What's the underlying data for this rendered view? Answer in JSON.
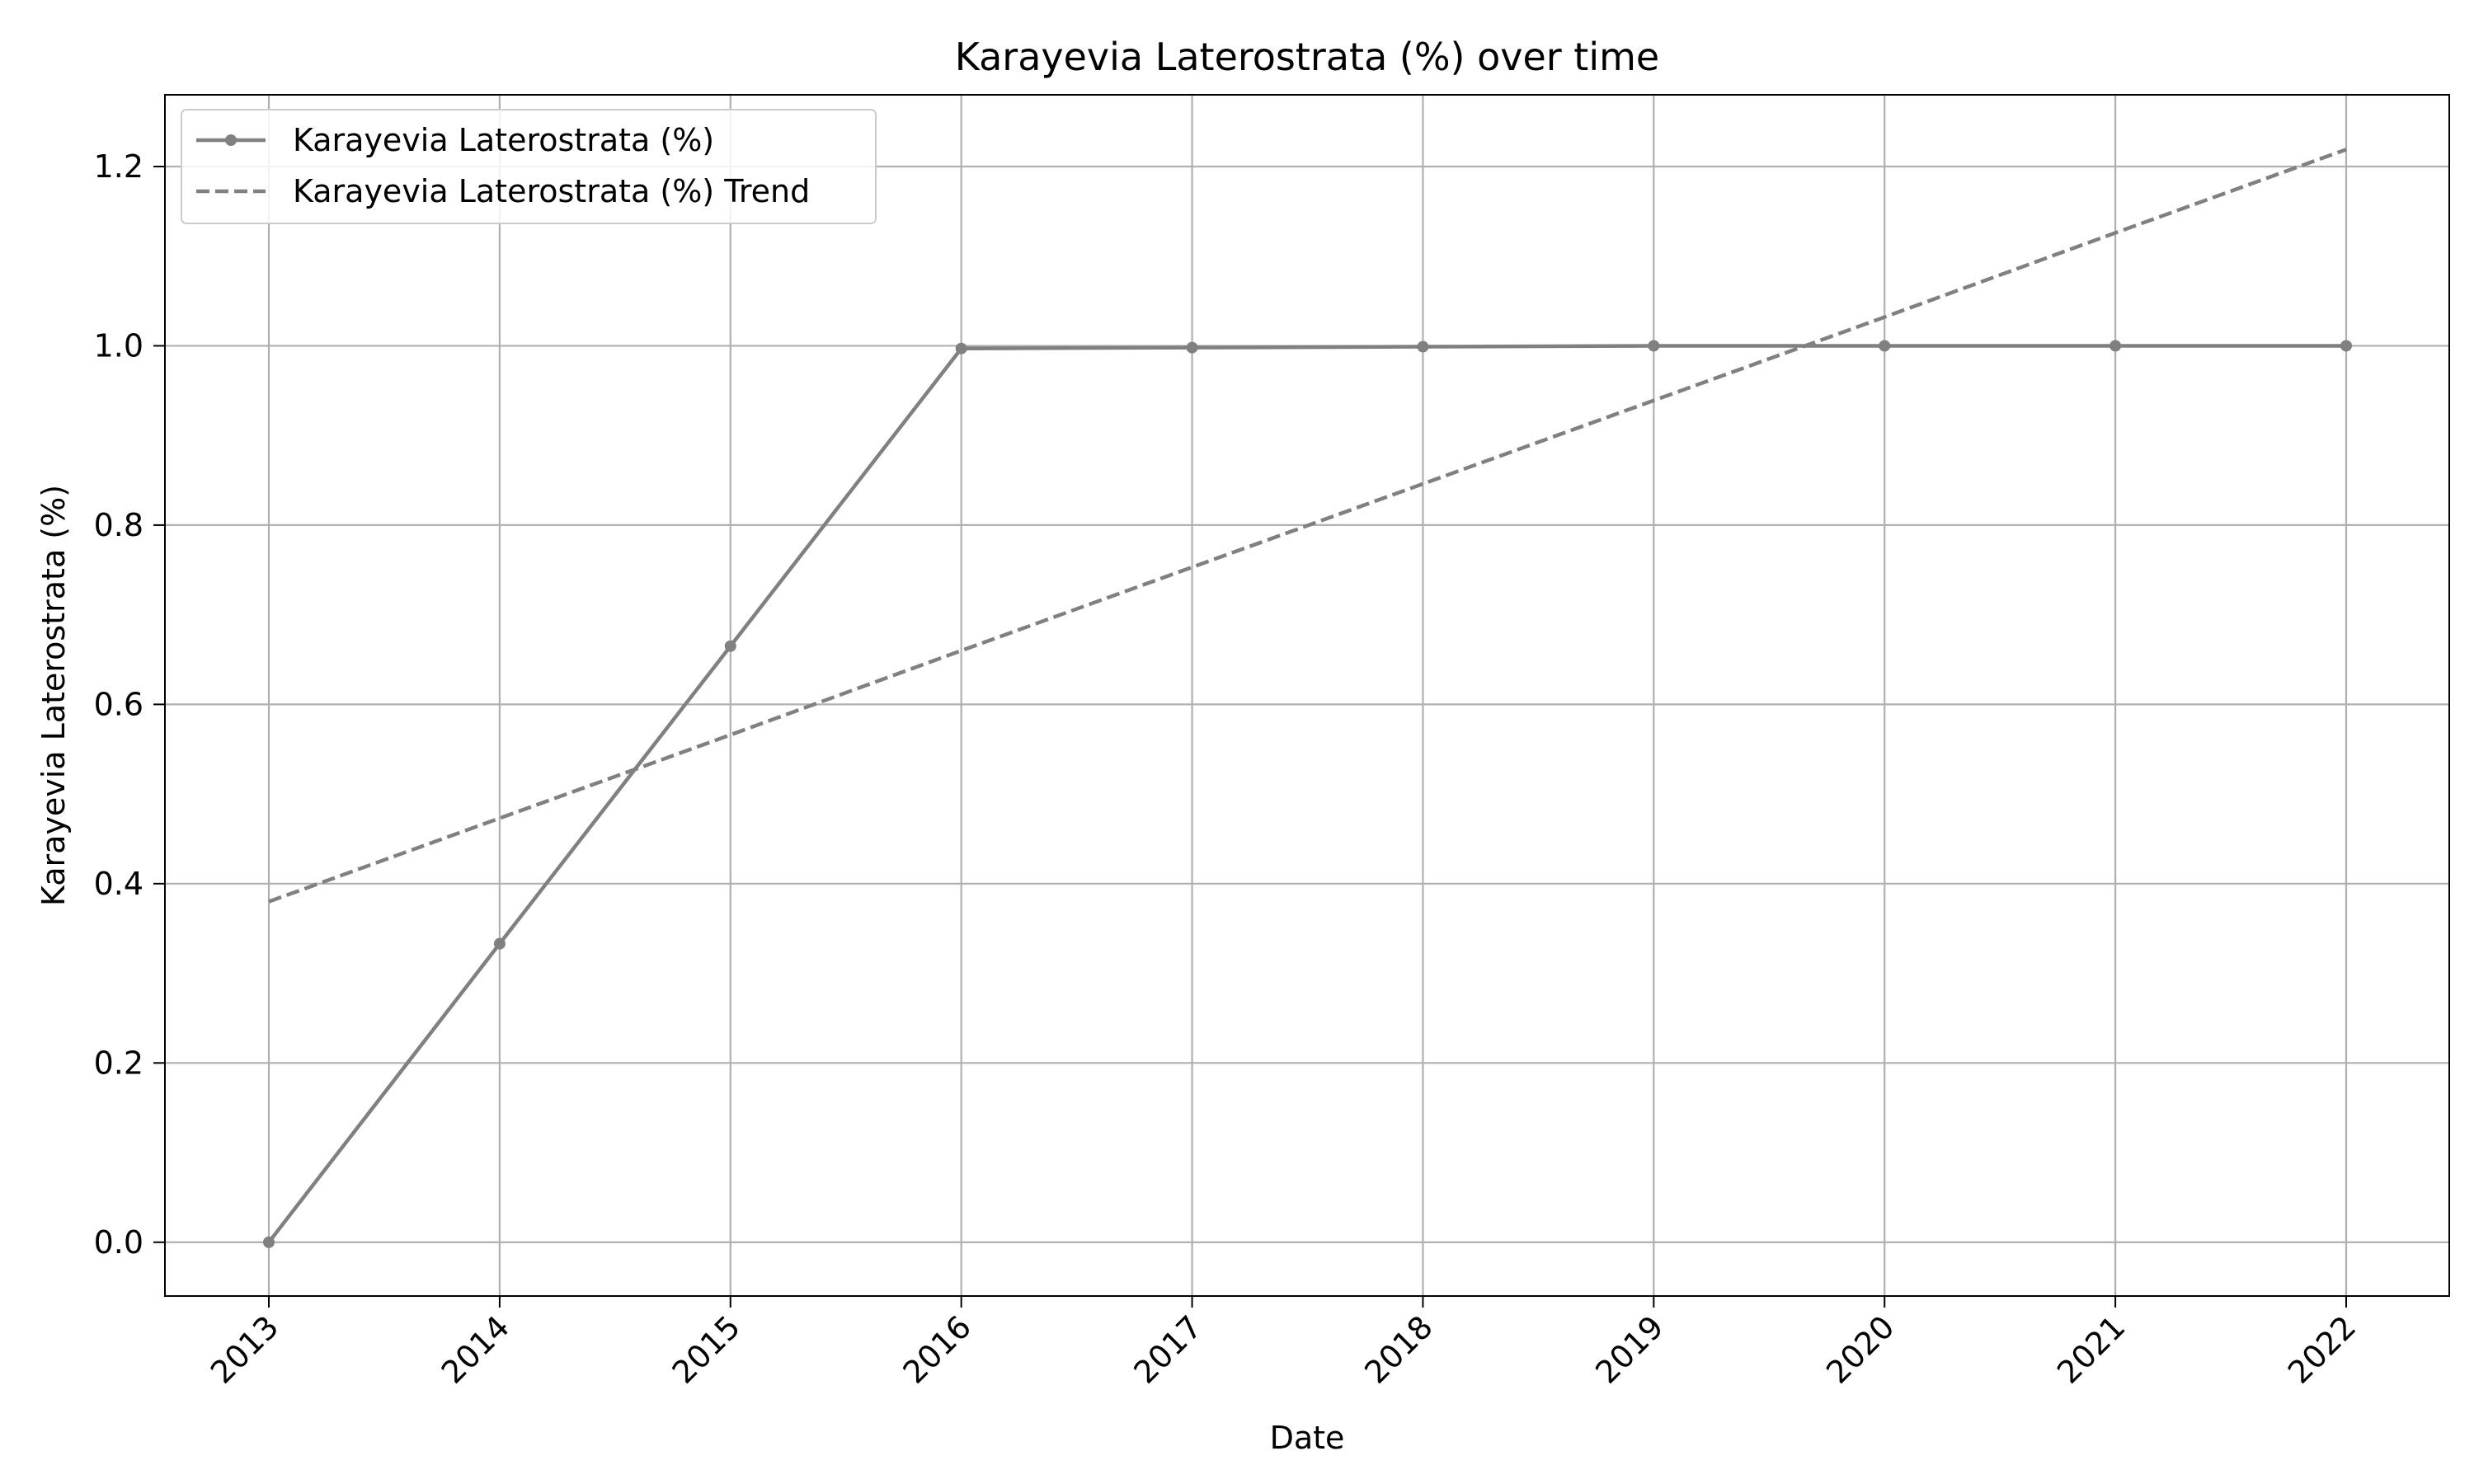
{
  "chart_data": {
    "type": "line",
    "title": "Karayevia Laterostrata (%) over time",
    "xlabel": "Date",
    "ylabel": "Karayevia Laterostrata (%)",
    "x": [
      "2013",
      "2014",
      "2015",
      "2016",
      "2017",
      "2018",
      "2019",
      "2020",
      "2021",
      "2022"
    ],
    "series": [
      {
        "name": "Karayevia Laterostrata (%)",
        "values": [
          0.0,
          0.333,
          0.665,
          0.997,
          0.998,
          0.999,
          1.0,
          1.0,
          1.0,
          1.0
        ],
        "style": "solid",
        "marker": "circle",
        "color": "#808080"
      },
      {
        "name": "Karayevia Laterostrata (%) Trend",
        "values": [
          0.38,
          0.473,
          0.566,
          0.66,
          0.753,
          0.846,
          0.939,
          1.032,
          1.126,
          1.219
        ],
        "style": "dashed",
        "marker": "none",
        "color": "#808080"
      }
    ],
    "yticks": [
      "0.0",
      "0.2",
      "0.4",
      "0.6",
      "0.8",
      "1.0",
      "1.2"
    ],
    "ylim": [
      -0.06,
      1.28
    ],
    "grid": true,
    "legend_position": "top-left"
  }
}
